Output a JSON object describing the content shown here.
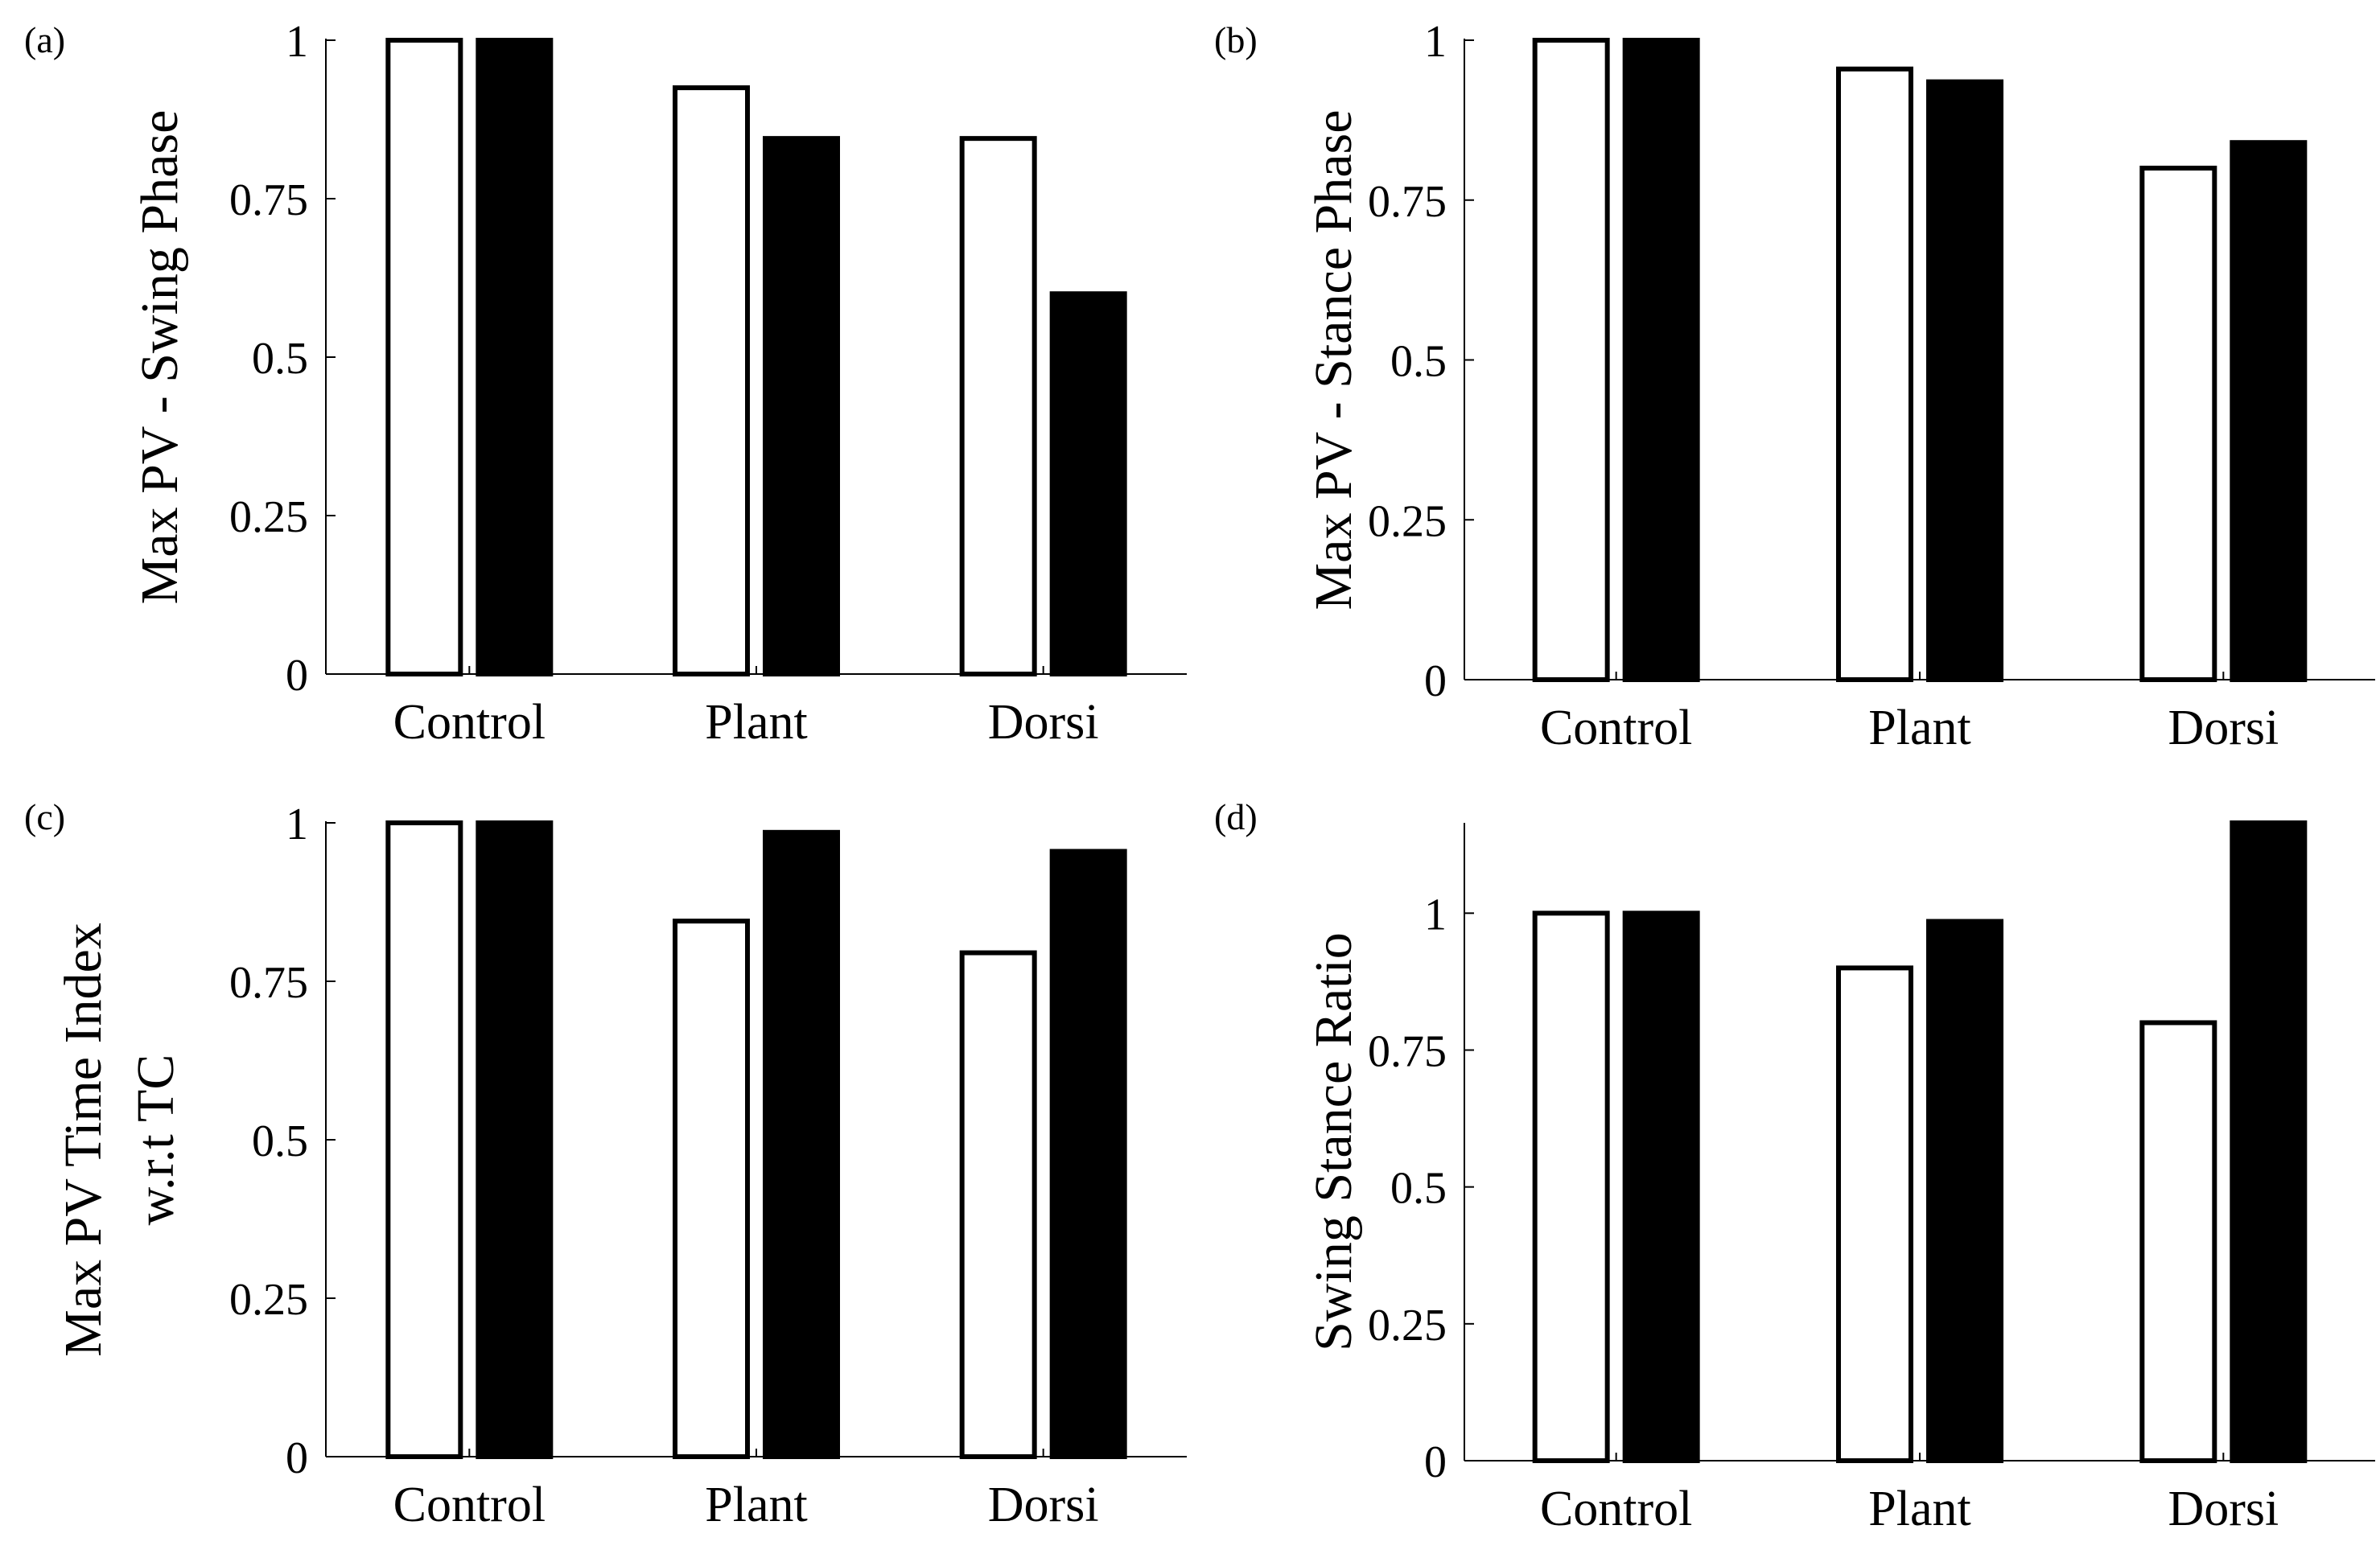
{
  "chart_data": [
    {
      "type": "bar",
      "panel_label": "(a)",
      "title": "",
      "xlabel": "",
      "ylabel": "Max PV - Swing Phase",
      "categories": [
        "Control",
        "Plant",
        "Dorsi"
      ],
      "series": [
        {
          "name": "series-1",
          "fill": "#ffffff",
          "values": [
            1.0,
            0.925,
            0.845
          ]
        },
        {
          "name": "series-2",
          "fill": "#000000",
          "values": [
            1.0,
            0.845,
            0.6
          ]
        }
      ],
      "ylim": [
        0,
        1
      ],
      "yticks": [
        0,
        0.25,
        0.5,
        0.75,
        1
      ],
      "ytick_labels": [
        "0",
        "0.25",
        "0.5",
        "0.75",
        "1"
      ]
    },
    {
      "type": "bar",
      "panel_label": "(b)",
      "title": "",
      "xlabel": "",
      "ylabel": "Max PV - Stance Phase",
      "categories": [
        "Control",
        "Plant",
        "Dorsi"
      ],
      "series": [
        {
          "name": "series-1",
          "fill": "#ffffff",
          "values": [
            1.0,
            0.955,
            0.8
          ]
        },
        {
          "name": "series-2",
          "fill": "#000000",
          "values": [
            1.0,
            0.935,
            0.84
          ]
        }
      ],
      "ylim": [
        0,
        1
      ],
      "yticks": [
        0,
        0.25,
        0.5,
        0.75,
        1
      ],
      "ytick_labels": [
        "0",
        "0.25",
        "0.5",
        "0.75",
        "1"
      ]
    },
    {
      "type": "bar",
      "panel_label": "(c)",
      "title": "",
      "xlabel": "",
      "ylabel": [
        "Max PV Time Index",
        "w.r.t TC"
      ],
      "categories": [
        "Control",
        "Plant",
        "Dorsi"
      ],
      "series": [
        {
          "name": "series-1",
          "fill": "#ffffff",
          "values": [
            1.0,
            0.845,
            0.795
          ]
        },
        {
          "name": "series-2",
          "fill": "#000000",
          "values": [
            1.0,
            0.985,
            0.955
          ]
        }
      ],
      "ylim": [
        0,
        1
      ],
      "yticks": [
        0,
        0.25,
        0.5,
        0.75,
        1
      ],
      "ytick_labels": [
        "0",
        "0.25",
        "0.5",
        "0.75",
        "1"
      ]
    },
    {
      "type": "bar",
      "panel_label": "(d)",
      "title": "",
      "xlabel": "",
      "ylabel": "Swing Stance Ratio",
      "categories": [
        "Control",
        "Plant",
        "Dorsi"
      ],
      "series": [
        {
          "name": "series-1",
          "fill": "#ffffff",
          "values": [
            1.0,
            0.9,
            0.8
          ]
        },
        {
          "name": "series-2",
          "fill": "#000000",
          "values": [
            1.0,
            0.985,
            1.165
          ]
        }
      ],
      "ylim": [
        0,
        1.165
      ],
      "yticks": [
        0,
        0.25,
        0.5,
        0.75,
        1
      ],
      "ytick_labels": [
        "0",
        "0.25",
        "0.5",
        "0.75",
        "1"
      ]
    }
  ]
}
